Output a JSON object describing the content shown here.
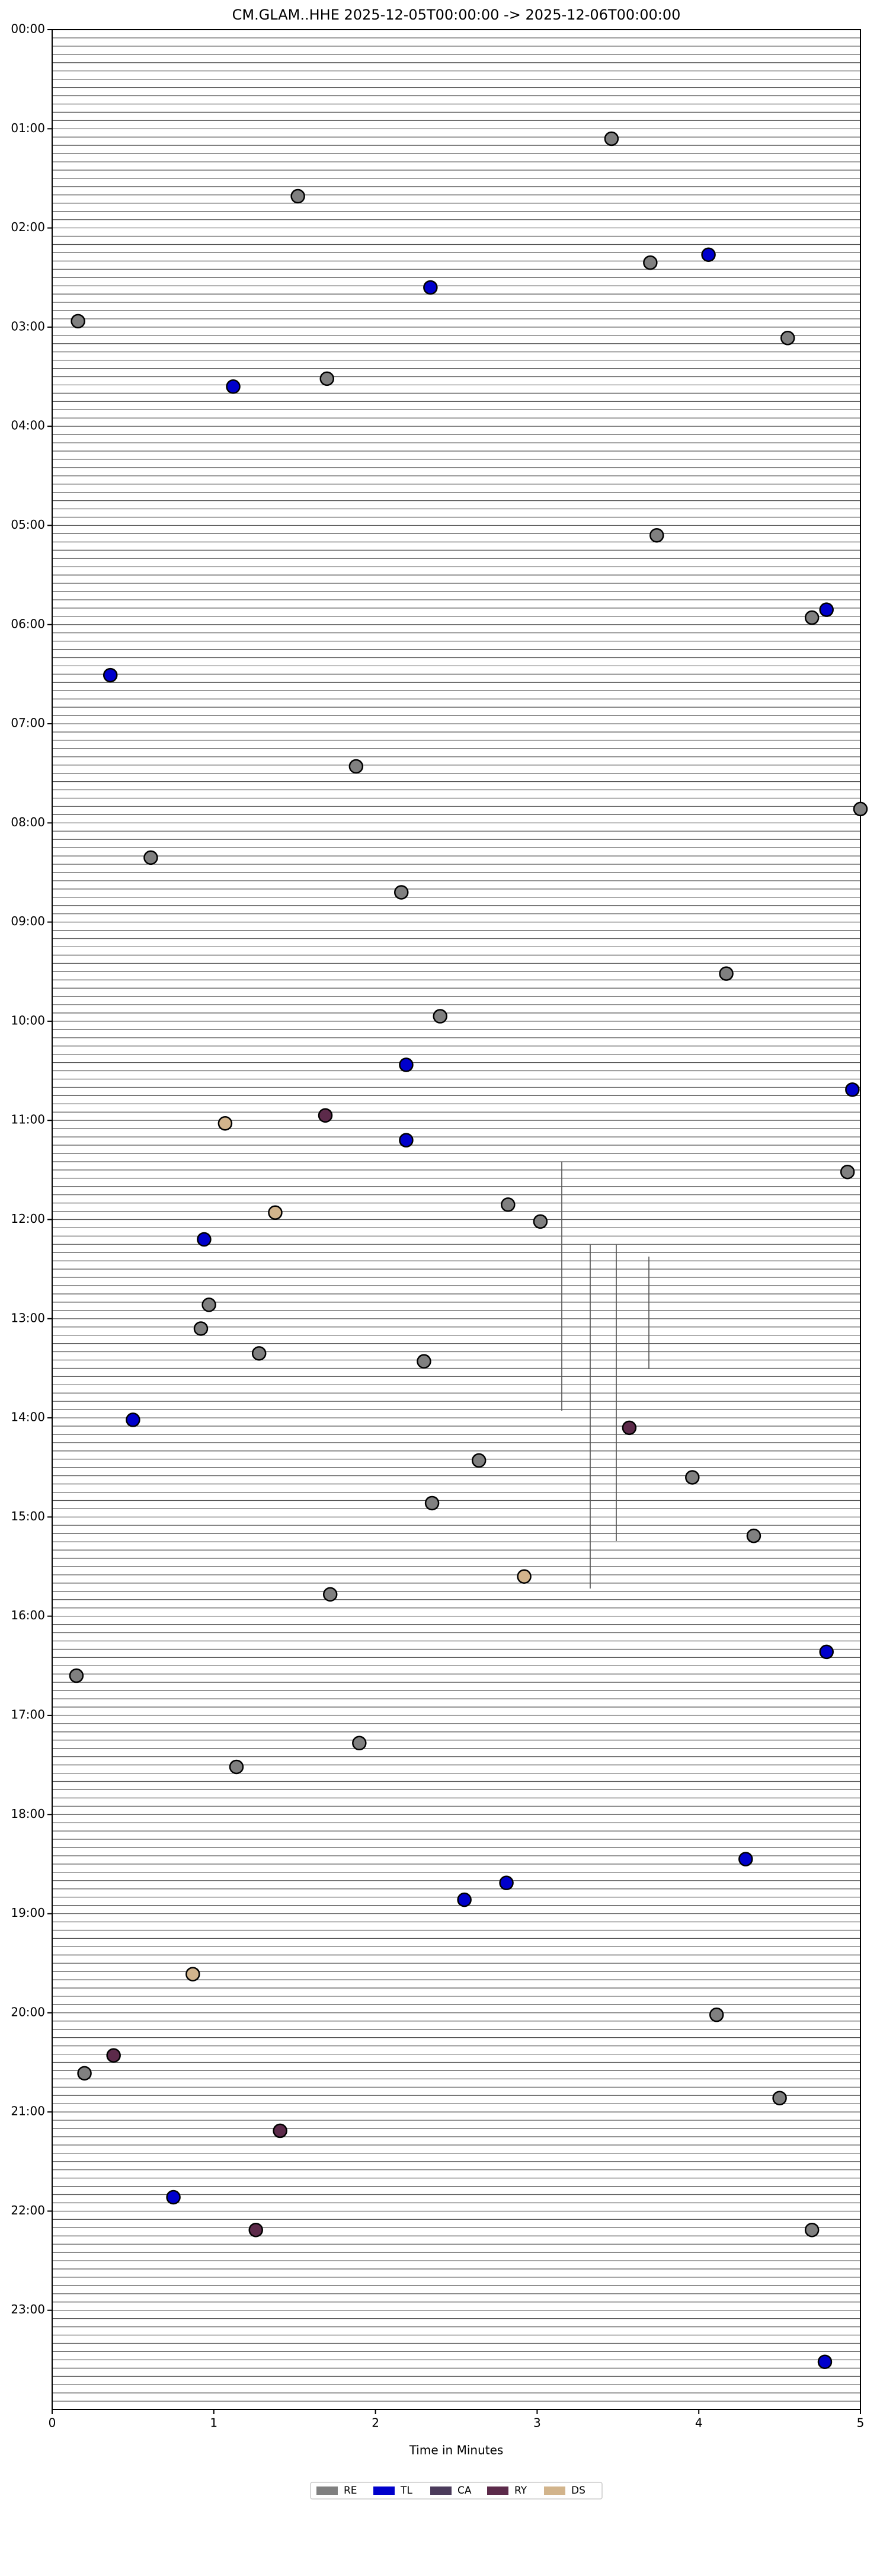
{
  "chart_data": {
    "type": "scatter",
    "title": "CM.GLAM..HHE  2025-12-05T00:00:00 -> 2025-12-06T00:00:00",
    "xlabel": "Time in Minutes",
    "xlim": [
      0,
      5
    ],
    "xticks": [
      0,
      1,
      2,
      3,
      4,
      5
    ],
    "ylim": [
      24,
      0
    ],
    "yticks": [
      {
        "value": 0,
        "label": "00:00"
      },
      {
        "value": 1,
        "label": "01:00"
      },
      {
        "value": 2,
        "label": "02:00"
      },
      {
        "value": 3,
        "label": "03:00"
      },
      {
        "value": 4,
        "label": "04:00"
      },
      {
        "value": 5,
        "label": "05:00"
      },
      {
        "value": 6,
        "label": "06:00"
      },
      {
        "value": 7,
        "label": "07:00"
      },
      {
        "value": 8,
        "label": "08:00"
      },
      {
        "value": 9,
        "label": "09:00"
      },
      {
        "value": 10,
        "label": "10:00"
      },
      {
        "value": 11,
        "label": "11:00"
      },
      {
        "value": 12,
        "label": "12:00"
      },
      {
        "value": 13,
        "label": "13:00"
      },
      {
        "value": 14,
        "label": "14:00"
      },
      {
        "value": 15,
        "label": "15:00"
      },
      {
        "value": 16,
        "label": "16:00"
      },
      {
        "value": 17,
        "label": "17:00"
      },
      {
        "value": 18,
        "label": "18:00"
      },
      {
        "value": 19,
        "label": "19:00"
      },
      {
        "value": 20,
        "label": "20:00"
      },
      {
        "value": 21,
        "label": "21:00"
      },
      {
        "value": 22,
        "label": "22:00"
      },
      {
        "value": 23,
        "label": "23:00"
      }
    ],
    "legend_position": "lower center",
    "series": [
      {
        "name": "RE",
        "color": "#808080",
        "x": [
          3.46,
          1.52,
          3.7,
          0.16,
          4.55,
          1.7,
          3.74,
          4.7,
          1.88,
          5.0,
          0.61,
          2.16,
          4.17,
          2.4,
          4.92,
          2.82,
          3.02,
          0.97,
          0.92,
          1.28,
          2.3,
          2.64,
          3.96,
          2.35,
          4.34,
          1.72,
          0.15,
          1.9,
          1.14,
          4.11,
          0.2,
          4.5,
          4.7
        ],
        "y": [
          1.1,
          1.68,
          2.35,
          2.94,
          3.11,
          3.52,
          5.1,
          5.93,
          7.43,
          7.86,
          8.35,
          8.7,
          9.52,
          9.95,
          11.52,
          11.85,
          12.02,
          12.86,
          13.1,
          13.35,
          13.43,
          14.43,
          14.6,
          14.86,
          15.19,
          15.78,
          16.6,
          17.28,
          17.52,
          20.02,
          20.61,
          20.86,
          22.19
        ]
      },
      {
        "name": "TL",
        "color": "#0000cc",
        "x": [
          4.06,
          2.34,
          1.12,
          4.79,
          0.36,
          2.19,
          4.95,
          2.19,
          0.94,
          0.5,
          4.79,
          4.29,
          2.81,
          2.55,
          0.75,
          4.78
        ],
        "y": [
          2.27,
          2.6,
          3.6,
          5.85,
          6.51,
          10.44,
          10.69,
          11.2,
          12.2,
          14.02,
          16.36,
          18.45,
          18.69,
          18.86,
          21.86,
          23.52
        ]
      },
      {
        "name": "CA",
        "color": "#4b3b5b",
        "x": [],
        "y": []
      },
      {
        "name": "RY",
        "color": "#5c2a4a",
        "x": [
          1.69,
          3.57,
          0.38,
          1.41,
          1.26
        ],
        "y": [
          10.95,
          14.1,
          20.43,
          21.19,
          22.19
        ]
      },
      {
        "name": "DS",
        "color": "#d2b48c",
        "x": [
          1.07,
          1.38,
          2.92,
          0.87
        ],
        "y": [
          11.03,
          11.93,
          15.6,
          19.61
        ]
      }
    ]
  }
}
